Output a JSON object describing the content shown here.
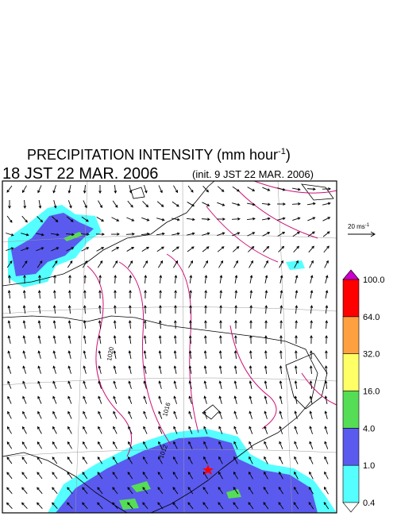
{
  "header": {
    "title": "PRECIPITATION INTENSITY (mm hour",
    "title_superscript": "-1",
    "title_end": ")",
    "valid_time": "18 JST 22 MAR. 2006",
    "init_time": "(init. 9 JST 22 MAR. 2006)"
  },
  "vector_legend": {
    "label": "20 ms",
    "superscript": "-1"
  },
  "isobar_labels": [
    "1020",
    "1016",
    "1012"
  ],
  "colorbar": {
    "labels": [
      "0.4",
      "1.0",
      "4.0",
      "16.0",
      "32.0",
      "64.0",
      "100.0"
    ],
    "colors": [
      "#55ffff",
      "#5a5aee",
      "#55dd55",
      "#ffff66",
      "#ffa040",
      "#ff0000"
    ],
    "under_color": "#ffffff",
    "over_color": "#cc00cc"
  }
}
